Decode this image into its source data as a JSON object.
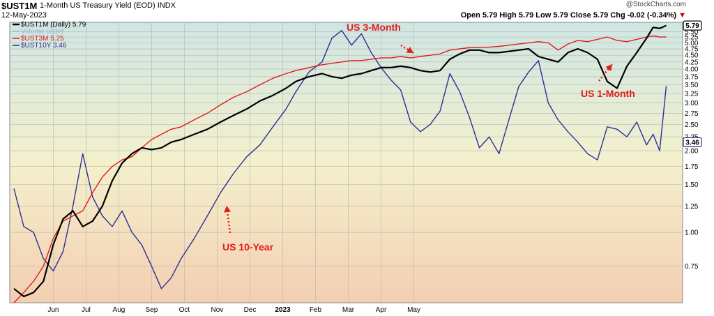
{
  "header": {
    "symbol": "$UST1M",
    "description": "1-Month US Treasury Yield (EOD)",
    "exchange": "INDX",
    "date": "12-May-2023",
    "watermark": "@StockCharts.com",
    "ohlc": "Open 5.79  High 5.79  Low 5.79  Close 5.79  Chg -0.02 (-0.34%)"
  },
  "colors": {
    "bg_top": "#cfe6e3",
    "bg_bottom": "#f3cfb2",
    "ust1m": "#000000",
    "ust3m": "#e11b1b",
    "ust10y": "#2b2f96",
    "grid": "#b5b5b5",
    "annotation": "#e11b1b"
  },
  "legend": [
    {
      "label": "$UST1M (Daily) 5.79",
      "color": "#000000"
    },
    {
      "label": "Volume undef",
      "color": "#8fb7d8"
    },
    {
      "label": "$UST3M 5.25",
      "color": "#e11b1b"
    },
    {
      "label": "$UST10Y 3.46",
      "color": "#2b2f96"
    }
  ],
  "annotations": [
    {
      "text": "US 3-Month",
      "arrow": "down-right"
    },
    {
      "text": "US 1-Month",
      "arrow": "up-right"
    },
    {
      "text": "US 10-Year",
      "arrow": "up"
    }
  ],
  "chart_data": {
    "type": "line",
    "y_scale": "log",
    "ylim": [
      0.55,
      5.95
    ],
    "y_ticks": [
      "0.75",
      "1.00",
      "1.25",
      "1.50",
      "1.75",
      "2.00",
      "2.25",
      "2.50",
      "2.75",
      "3.00",
      "3.25",
      "3.50",
      "3.75",
      "4.00",
      "4.25",
      "4.50",
      "4.75",
      "5.00",
      "5.25",
      "5.50"
    ],
    "x_ticks": [
      "Jun",
      "Jul",
      "Aug",
      "Sep",
      "Oct",
      "Nov",
      "Dec",
      "2023",
      "Feb",
      "Mar",
      "Apr",
      "May"
    ],
    "last_value_badges": [
      "5.79",
      "3.46"
    ],
    "grid": true,
    "series": [
      {
        "name": "$UST1M (Daily)",
        "values": [
          [
            0.0,
            0.62
          ],
          [
            0.3,
            0.58
          ],
          [
            0.6,
            0.6
          ],
          [
            0.9,
            0.66
          ],
          [
            1.2,
            0.9
          ],
          [
            1.5,
            1.12
          ],
          [
            1.8,
            1.2
          ],
          [
            2.1,
            1.05
          ],
          [
            2.4,
            1.1
          ],
          [
            2.7,
            1.25
          ],
          [
            3.0,
            1.55
          ],
          [
            3.3,
            1.8
          ],
          [
            3.6,
            1.95
          ],
          [
            3.9,
            2.05
          ],
          [
            4.2,
            2.02
          ],
          [
            4.5,
            2.05
          ],
          [
            4.8,
            2.15
          ],
          [
            5.1,
            2.2
          ],
          [
            5.5,
            2.3
          ],
          [
            5.9,
            2.4
          ],
          [
            6.3,
            2.55
          ],
          [
            6.7,
            2.7
          ],
          [
            7.1,
            2.85
          ],
          [
            7.5,
            3.05
          ],
          [
            7.9,
            3.2
          ],
          [
            8.3,
            3.4
          ],
          [
            8.6,
            3.6
          ],
          [
            9.0,
            3.75
          ],
          [
            9.4,
            3.85
          ],
          [
            9.7,
            3.75
          ],
          [
            10.0,
            3.7
          ],
          [
            10.3,
            3.8
          ],
          [
            10.6,
            3.85
          ],
          [
            10.9,
            3.95
          ],
          [
            11.2,
            4.05
          ],
          [
            11.5,
            4.05
          ],
          [
            11.8,
            4.1
          ],
          [
            12.1,
            4.05
          ],
          [
            12.4,
            3.95
          ],
          [
            12.7,
            3.9
          ],
          [
            13.0,
            3.95
          ],
          [
            13.3,
            4.35
          ],
          [
            13.6,
            4.55
          ],
          [
            13.9,
            4.7
          ],
          [
            14.2,
            4.7
          ],
          [
            14.5,
            4.6
          ],
          [
            14.8,
            4.6
          ],
          [
            15.1,
            4.65
          ],
          [
            15.4,
            4.7
          ],
          [
            15.7,
            4.75
          ],
          [
            16.0,
            4.45
          ],
          [
            16.3,
            4.35
          ],
          [
            16.6,
            4.25
          ],
          [
            16.9,
            4.6
          ],
          [
            17.2,
            4.75
          ],
          [
            17.5,
            4.6
          ],
          [
            17.8,
            4.35
          ],
          [
            18.1,
            3.6
          ],
          [
            18.4,
            3.4
          ],
          [
            18.7,
            4.1
          ],
          [
            19.0,
            4.6
          ],
          [
            19.3,
            5.2
          ],
          [
            19.5,
            5.7
          ],
          [
            19.7,
            5.65
          ],
          [
            19.9,
            5.79
          ]
        ]
      },
      {
        "name": "$UST3M",
        "values": [
          [
            0.0,
            0.55
          ],
          [
            0.3,
            0.6
          ],
          [
            0.6,
            0.66
          ],
          [
            0.9,
            0.75
          ],
          [
            1.2,
            0.95
          ],
          [
            1.5,
            1.1
          ],
          [
            1.8,
            1.15
          ],
          [
            2.1,
            1.2
          ],
          [
            2.4,
            1.4
          ],
          [
            2.7,
            1.6
          ],
          [
            3.0,
            1.75
          ],
          [
            3.3,
            1.85
          ],
          [
            3.6,
            1.9
          ],
          [
            3.9,
            2.05
          ],
          [
            4.2,
            2.2
          ],
          [
            4.5,
            2.3
          ],
          [
            4.8,
            2.4
          ],
          [
            5.1,
            2.45
          ],
          [
            5.5,
            2.6
          ],
          [
            5.9,
            2.75
          ],
          [
            6.3,
            2.95
          ],
          [
            6.7,
            3.15
          ],
          [
            7.1,
            3.3
          ],
          [
            7.5,
            3.5
          ],
          [
            7.9,
            3.7
          ],
          [
            8.3,
            3.85
          ],
          [
            8.6,
            3.95
          ],
          [
            9.0,
            4.05
          ],
          [
            9.4,
            4.15
          ],
          [
            9.7,
            4.2
          ],
          [
            10.0,
            4.25
          ],
          [
            10.3,
            4.3
          ],
          [
            10.6,
            4.3
          ],
          [
            10.9,
            4.35
          ],
          [
            11.2,
            4.4
          ],
          [
            11.5,
            4.4
          ],
          [
            11.8,
            4.45
          ],
          [
            12.1,
            4.4
          ],
          [
            12.4,
            4.45
          ],
          [
            12.7,
            4.5
          ],
          [
            13.0,
            4.55
          ],
          [
            13.3,
            4.7
          ],
          [
            13.6,
            4.75
          ],
          [
            13.9,
            4.8
          ],
          [
            14.2,
            4.8
          ],
          [
            14.5,
            4.82
          ],
          [
            14.8,
            4.85
          ],
          [
            15.1,
            4.9
          ],
          [
            15.4,
            4.95
          ],
          [
            15.7,
            5.0
          ],
          [
            16.0,
            5.05
          ],
          [
            16.3,
            5.0
          ],
          [
            16.6,
            4.7
          ],
          [
            16.9,
            4.95
          ],
          [
            17.2,
            5.1
          ],
          [
            17.5,
            5.05
          ],
          [
            17.8,
            5.15
          ],
          [
            18.1,
            5.25
          ],
          [
            18.4,
            5.1
          ],
          [
            18.7,
            5.05
          ],
          [
            19.0,
            5.15
          ],
          [
            19.3,
            5.25
          ],
          [
            19.5,
            5.3
          ],
          [
            19.7,
            5.25
          ],
          [
            19.9,
            5.25
          ]
        ]
      },
      {
        "name": "$UST10Y",
        "values": [
          [
            0.0,
            1.45
          ],
          [
            0.3,
            1.05
          ],
          [
            0.6,
            1.0
          ],
          [
            0.9,
            0.8
          ],
          [
            1.2,
            0.72
          ],
          [
            1.5,
            0.85
          ],
          [
            1.8,
            1.25
          ],
          [
            2.1,
            1.95
          ],
          [
            2.4,
            1.35
          ],
          [
            2.7,
            1.15
          ],
          [
            3.0,
            1.05
          ],
          [
            3.3,
            1.2
          ],
          [
            3.6,
            1.0
          ],
          [
            3.9,
            0.9
          ],
          [
            4.2,
            0.75
          ],
          [
            4.5,
            0.62
          ],
          [
            4.8,
            0.68
          ],
          [
            5.1,
            0.8
          ],
          [
            5.5,
            0.95
          ],
          [
            5.9,
            1.15
          ],
          [
            6.3,
            1.4
          ],
          [
            6.7,
            1.65
          ],
          [
            7.1,
            1.9
          ],
          [
            7.5,
            2.1
          ],
          [
            7.9,
            2.45
          ],
          [
            8.3,
            2.85
          ],
          [
            8.6,
            3.3
          ],
          [
            9.0,
            3.9
          ],
          [
            9.4,
            4.25
          ],
          [
            9.7,
            5.2
          ],
          [
            10.0,
            5.55
          ],
          [
            10.3,
            4.9
          ],
          [
            10.6,
            5.4
          ],
          [
            10.9,
            4.6
          ],
          [
            11.2,
            4.05
          ],
          [
            11.5,
            3.65
          ],
          [
            11.8,
            3.35
          ],
          [
            12.1,
            2.55
          ],
          [
            12.4,
            2.35
          ],
          [
            12.7,
            2.5
          ],
          [
            13.0,
            2.8
          ],
          [
            13.3,
            3.85
          ],
          [
            13.6,
            3.3
          ],
          [
            13.9,
            2.65
          ],
          [
            14.2,
            2.05
          ],
          [
            14.5,
            2.25
          ],
          [
            14.8,
            1.95
          ],
          [
            15.1,
            2.6
          ],
          [
            15.4,
            3.45
          ],
          [
            15.7,
            3.9
          ],
          [
            16.0,
            4.3
          ],
          [
            16.3,
            3.0
          ],
          [
            16.6,
            2.6
          ],
          [
            16.9,
            2.35
          ],
          [
            17.2,
            2.15
          ],
          [
            17.5,
            1.95
          ],
          [
            17.8,
            1.85
          ],
          [
            18.1,
            2.45
          ],
          [
            18.4,
            2.4
          ],
          [
            18.7,
            2.25
          ],
          [
            19.0,
            2.55
          ],
          [
            19.3,
            2.1
          ],
          [
            19.5,
            2.3
          ],
          [
            19.7,
            2.0
          ],
          [
            19.9,
            3.46
          ]
        ]
      }
    ]
  }
}
